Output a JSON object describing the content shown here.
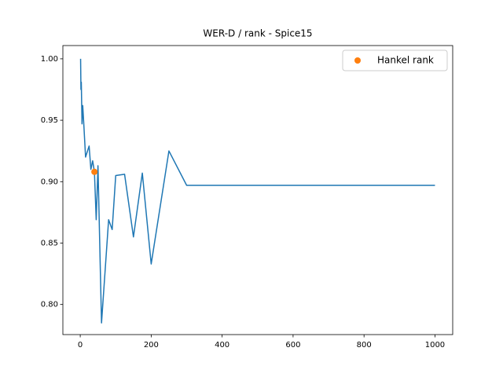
{
  "chart_data": {
    "type": "line",
    "title": "WER-D / rank - Spice15",
    "series": [
      {
        "color": "#1f77b4",
        "marker": false,
        "line": true,
        "x": [
          1,
          2,
          3,
          5,
          7,
          10,
          15,
          25,
          30,
          35,
          40,
          45,
          50,
          60,
          80,
          90,
          100,
          125,
          150,
          175,
          200,
          250,
          300,
          1000
        ],
        "values": [
          1.0,
          0.975,
          0.981,
          0.947,
          0.962,
          0.947,
          0.92,
          0.929,
          0.91,
          0.917,
          0.908,
          0.869,
          0.913,
          0.785,
          0.869,
          0.861,
          0.905,
          0.906,
          0.855,
          0.907,
          0.833,
          0.925,
          0.897,
          0.897
        ]
      },
      {
        "name": "Hankel rank",
        "color": "#ff7f0e",
        "marker": true,
        "line": false,
        "x": [
          40
        ],
        "values": [
          0.908
        ]
      }
    ],
    "xlim": [
      -48.95,
      1049.95
    ],
    "xticks": [
      0,
      200,
      400,
      600,
      800,
      1000
    ],
    "ylim": [
      0.7755,
      1.0108
    ],
    "yticks": [
      {
        "value": 0.8,
        "label": "0.80"
      },
      {
        "value": 0.85,
        "label": "0.85"
      },
      {
        "value": 0.9,
        "label": "0.90"
      },
      {
        "value": 0.95,
        "label": "0.95"
      },
      {
        "value": 1.0,
        "label": "1.00"
      }
    ],
    "legend": "upper right",
    "grid": false
  }
}
